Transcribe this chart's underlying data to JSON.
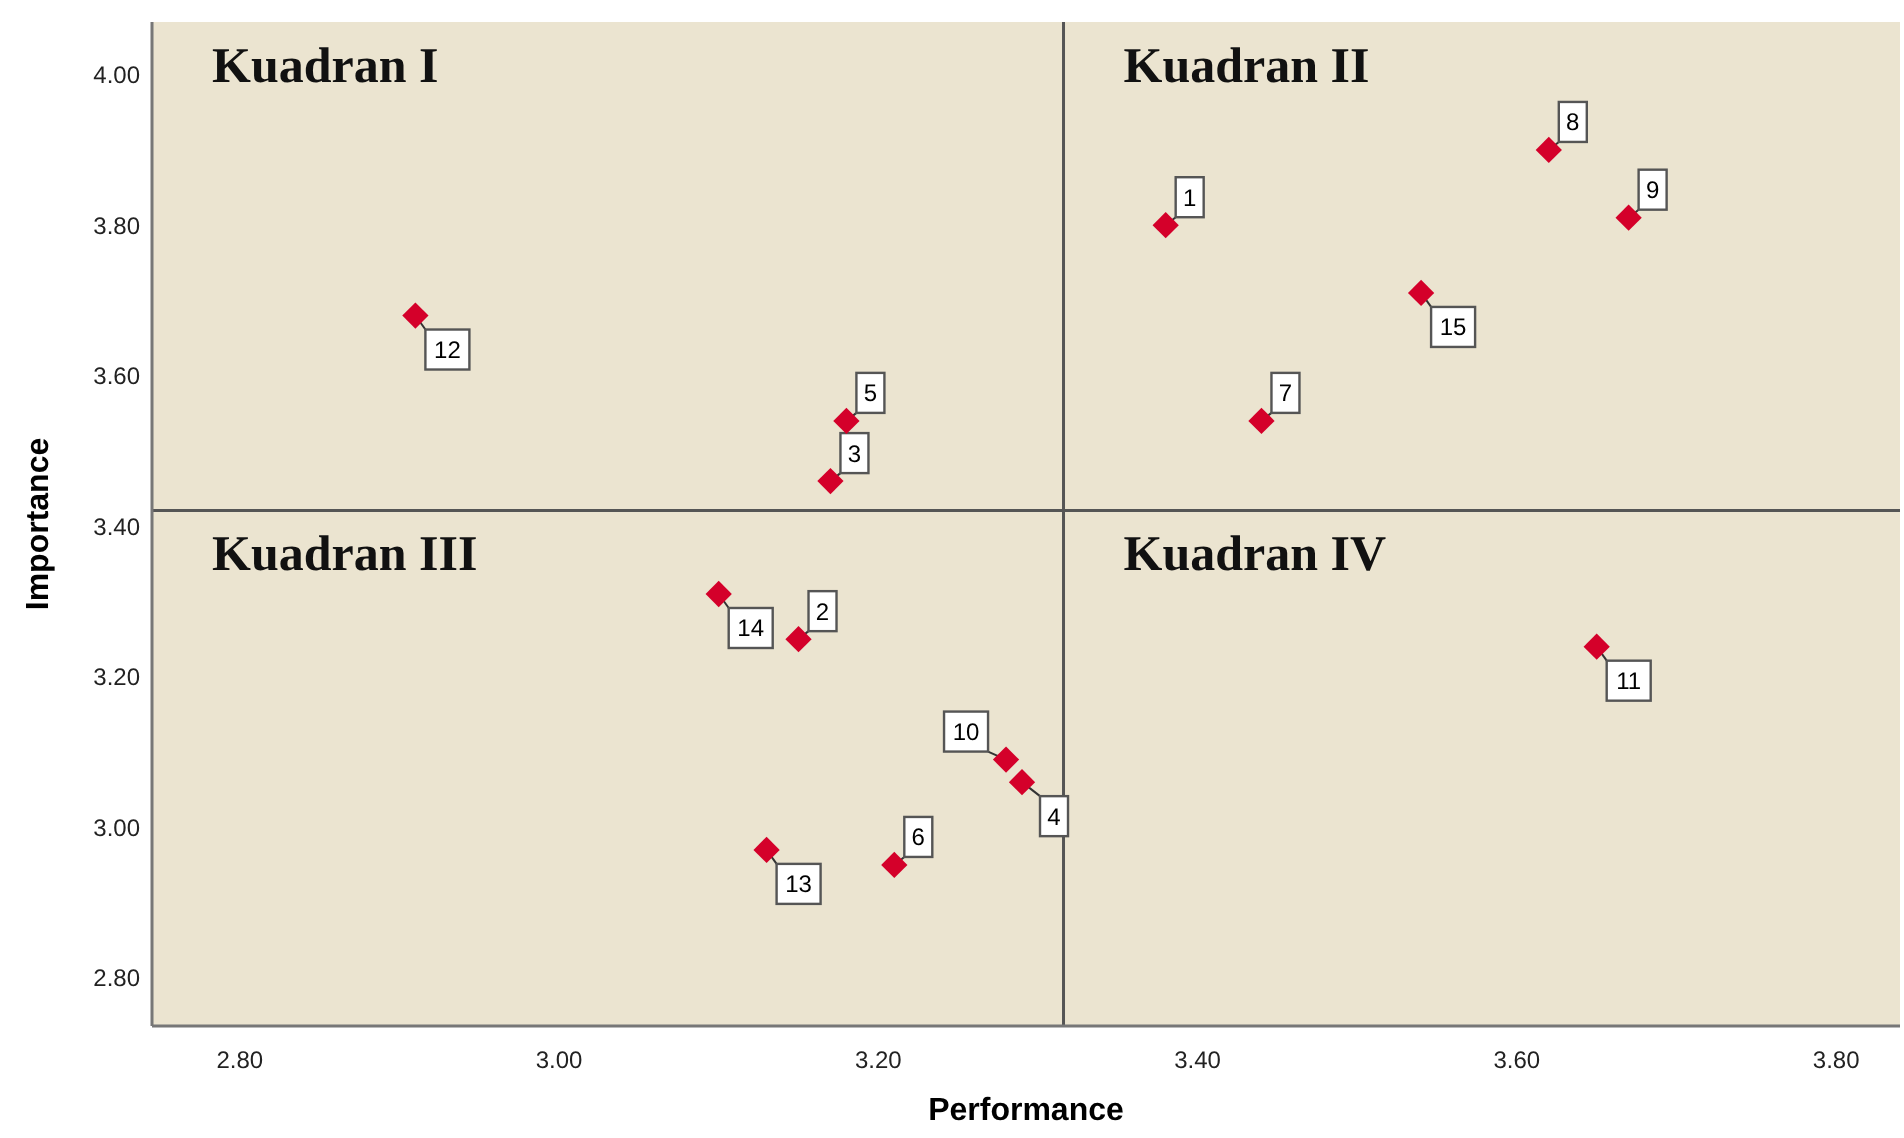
{
  "chart_data": {
    "type": "scatter",
    "xlabel": "Performance",
    "ylabel": "Importance",
    "x": [
      3.38,
      3.15,
      3.17,
      3.29,
      3.18,
      3.21,
      3.44,
      3.62,
      3.67,
      3.28,
      3.65,
      2.91,
      3.13,
      3.1,
      3.54
    ],
    "series": [
      {
        "color": "#d4002a",
        "values": [
          3.8,
          3.25,
          3.46,
          3.06,
          3.54,
          2.95,
          3.54,
          3.9,
          3.81,
          3.09,
          3.24,
          3.68,
          2.97,
          3.31,
          3.71
        ]
      }
    ],
    "xlim": [
      2.745,
      3.84
    ],
    "ylim": [
      2.736,
      4.07
    ],
    "xticks": [
      {
        "value": 2.8,
        "label": "2.80"
      },
      {
        "value": 3.0,
        "label": "3.00"
      },
      {
        "value": 3.2,
        "label": "3.20"
      },
      {
        "value": 3.4,
        "label": "3.40"
      },
      {
        "value": 3.6,
        "label": "3.60"
      },
      {
        "value": 3.8,
        "label": "3.80"
      }
    ],
    "yticks": [
      {
        "value": 2.8,
        "label": "2.80"
      },
      {
        "value": 3.0,
        "label": "3.00"
      },
      {
        "value": 3.2,
        "label": "3.20"
      },
      {
        "value": 3.4,
        "label": "3.40"
      },
      {
        "value": 3.6,
        "label": "3.60"
      },
      {
        "value": 3.8,
        "label": "3.80"
      },
      {
        "value": 4.0,
        "label": "4.00"
      }
    ],
    "ref_lines": [
      {
        "axis": "x",
        "value": 3.316,
        "color": "#555555"
      },
      {
        "axis": "y",
        "value": 3.421,
        "color": "#555555"
      }
    ],
    "marker": "diamond",
    "grid": false,
    "annotations": [
      "Kuadran I",
      "Kuadran II",
      "Kuadran III",
      "Kuadran IV",
      {
        "text": "1",
        "x": 3.38,
        "y": 3.8
      },
      {
        "text": "2",
        "x": 3.15,
        "y": 3.25
      },
      {
        "text": "3",
        "x": 3.17,
        "y": 3.46
      },
      {
        "text": "4",
        "x": 3.29,
        "y": 3.06
      },
      {
        "text": "5",
        "x": 3.18,
        "y": 3.54
      },
      {
        "text": "6",
        "x": 3.21,
        "y": 2.95
      },
      {
        "text": "7",
        "x": 3.44,
        "y": 3.54
      },
      {
        "text": "8",
        "x": 3.62,
        "y": 3.9
      },
      {
        "text": "9",
        "x": 3.67,
        "y": 3.81
      },
      {
        "text": "10",
        "x": 3.28,
        "y": 3.09
      },
      {
        "text": "11",
        "x": 3.65,
        "y": 3.24
      },
      {
        "text": "12",
        "x": 2.91,
        "y": 3.68
      },
      {
        "text": "13",
        "x": 3.13,
        "y": 2.97
      },
      {
        "text": "14",
        "x": 3.1,
        "y": 3.31
      },
      {
        "text": "15",
        "x": 3.54,
        "y": 3.71
      }
    ]
  }
}
